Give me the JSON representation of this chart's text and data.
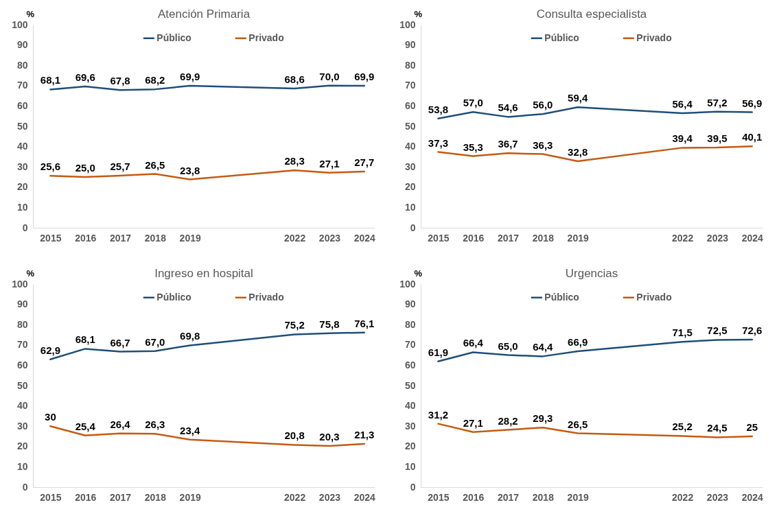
{
  "chart_data": [
    {
      "type": "line",
      "title": "Atención Primaria",
      "ylabel": "%",
      "x": [
        2015,
        2016,
        2017,
        2018,
        2019,
        2022,
        2023,
        2024
      ],
      "xlim": [
        2014.5,
        2024.3
      ],
      "xticks": [
        2015,
        2016,
        2017,
        2018,
        2019,
        2022,
        2023,
        2024
      ],
      "ylim": [
        0,
        100
      ],
      "yticks": [
        0,
        10,
        20,
        30,
        40,
        50,
        60,
        70,
        80,
        90,
        100
      ],
      "legend": "top",
      "grid": false,
      "marker": "none",
      "line_style": "solid",
      "series": [
        {
          "name": "Público",
          "color": "#1f4e79",
          "values": [
            68.1,
            69.6,
            67.8,
            68.2,
            69.9,
            68.6,
            70.0,
            69.9
          ],
          "value_labels": [
            "68,1",
            "69,6",
            "67,8",
            "68,2",
            "69,9",
            "68,6",
            "70,0",
            "69,9"
          ]
        },
        {
          "name": "Privado",
          "color": "#c55a11",
          "values": [
            25.6,
            25.0,
            25.7,
            26.5,
            23.8,
            28.3,
            27.1,
            27.7
          ],
          "value_labels": [
            "25,6",
            "25,0",
            "25,7",
            "26,5",
            "23,8",
            "28,3",
            "27,1",
            "27,7"
          ]
        }
      ]
    },
    {
      "type": "line",
      "title": "Consulta especialista",
      "ylabel": "%",
      "x": [
        2015,
        2016,
        2017,
        2018,
        2019,
        2022,
        2023,
        2024
      ],
      "xlim": [
        2014.5,
        2024.3
      ],
      "xticks": [
        2015,
        2016,
        2017,
        2018,
        2019,
        2022,
        2023,
        2024
      ],
      "ylim": [
        0,
        100
      ],
      "yticks": [
        0,
        10,
        20,
        30,
        40,
        50,
        60,
        70,
        80,
        90,
        100
      ],
      "legend": "top",
      "grid": false,
      "marker": "none",
      "line_style": "solid",
      "series": [
        {
          "name": "Público",
          "color": "#1f4e79",
          "values": [
            53.8,
            57.0,
            54.6,
            56.0,
            59.4,
            56.4,
            57.2,
            56.9
          ],
          "value_labels": [
            "53,8",
            "57,0",
            "54,6",
            "56,0",
            "59,4",
            "56,4",
            "57,2",
            "56,9"
          ]
        },
        {
          "name": "Privado",
          "color": "#c55a11",
          "values": [
            37.3,
            35.3,
            36.7,
            36.3,
            32.8,
            39.4,
            39.5,
            40.1
          ],
          "value_labels": [
            "37,3",
            "35,3",
            "36,7",
            "36,3",
            "32,8",
            "39,4",
            "39,5",
            "40,1"
          ]
        }
      ]
    },
    {
      "type": "line",
      "title": "Ingreso en hospital",
      "ylabel": "%",
      "x": [
        2015,
        2016,
        2017,
        2018,
        2019,
        2022,
        2023,
        2024
      ],
      "xlim": [
        2014.5,
        2024.3
      ],
      "xticks": [
        2015,
        2016,
        2017,
        2018,
        2019,
        2022,
        2023,
        2024
      ],
      "ylim": [
        0,
        100
      ],
      "yticks": [
        0,
        10,
        20,
        30,
        40,
        50,
        60,
        70,
        80,
        90,
        100
      ],
      "legend": "top",
      "grid": false,
      "marker": "none",
      "line_style": "solid",
      "series": [
        {
          "name": "Público",
          "color": "#1f4e79",
          "values": [
            62.9,
            68.1,
            66.7,
            67.0,
            69.8,
            75.2,
            75.8,
            76.1
          ],
          "value_labels": [
            "62,9",
            "68,1",
            "66,7",
            "67,0",
            "69,8",
            "75,2",
            "75,8",
            "76,1"
          ]
        },
        {
          "name": "Privado",
          "color": "#c55a11",
          "values": [
            30,
            25.4,
            26.4,
            26.3,
            23.4,
            20.8,
            20.3,
            21.3
          ],
          "value_labels": [
            "30",
            "25,4",
            "26,4",
            "26,3",
            "23,4",
            "20,8",
            "20,3",
            "21,3"
          ]
        }
      ]
    },
    {
      "type": "line",
      "title": "Urgencias",
      "ylabel": "%",
      "x": [
        2015,
        2016,
        2017,
        2018,
        2019,
        2022,
        2023,
        2024
      ],
      "xlim": [
        2014.5,
        2024.3
      ],
      "xticks": [
        2015,
        2016,
        2017,
        2018,
        2019,
        2022,
        2023,
        2024
      ],
      "ylim": [
        0,
        100
      ],
      "yticks": [
        0,
        10,
        20,
        30,
        40,
        50,
        60,
        70,
        80,
        90,
        100
      ],
      "legend": "top",
      "grid": false,
      "marker": "none",
      "line_style": "solid",
      "series": [
        {
          "name": "Público",
          "color": "#1f4e79",
          "values": [
            61.9,
            66.4,
            65.0,
            64.4,
            66.9,
            71.5,
            72.5,
            72.6
          ],
          "value_labels": [
            "61,9",
            "66,4",
            "65,0",
            "64,4",
            "66,9",
            "71,5",
            "72,5",
            "72,6"
          ]
        },
        {
          "name": "Privado",
          "color": "#c55a11",
          "values": [
            31.2,
            27.1,
            28.2,
            29.3,
            26.5,
            25.2,
            24.5,
            25
          ],
          "value_labels": [
            "31,2",
            "27,1",
            "28,2",
            "29,3",
            "26,5",
            "25,2",
            "24,5",
            "25"
          ]
        }
      ]
    }
  ]
}
